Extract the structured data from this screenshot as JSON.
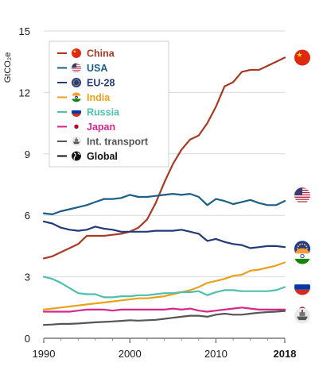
{
  "chart_data": {
    "type": "line",
    "ylabel": "GtCO₂e",
    "xlabel": "",
    "xlim": [
      1990,
      2018
    ],
    "ylim": [
      0,
      15
    ],
    "x_ticks": [
      {
        "value": 1990,
        "label": "1990",
        "bold": false
      },
      {
        "value": 2000,
        "label": "2000",
        "bold": false
      },
      {
        "value": 2010,
        "label": "2010",
        "bold": false
      },
      {
        "value": 2018,
        "label": "2018",
        "bold": true
      }
    ],
    "y_ticks": [
      {
        "value": 0,
        "label": "0"
      },
      {
        "value": 3,
        "label": "3"
      },
      {
        "value": 6,
        "label": "6"
      },
      {
        "value": 9,
        "label": "9"
      },
      {
        "value": 12,
        "label": "12"
      },
      {
        "value": 15,
        "label": "15"
      }
    ],
    "grid": "horizontal",
    "legend_position": "top-left",
    "x": [
      1990,
      1991,
      1992,
      1993,
      1994,
      1995,
      1996,
      1997,
      1998,
      1999,
      2000,
      2001,
      2002,
      2003,
      2004,
      2005,
      2006,
      2007,
      2008,
      2009,
      2010,
      2011,
      2012,
      2013,
      2014,
      2015,
      2016,
      2017,
      2018
    ],
    "series": [
      {
        "name": "China",
        "color": "#a83a22",
        "icon": "china-flag-icon",
        "values": [
          3.9,
          4.0,
          4.2,
          4.4,
          4.6,
          5.0,
          5.0,
          5.0,
          5.05,
          5.1,
          5.2,
          5.4,
          5.8,
          6.6,
          7.6,
          8.5,
          9.2,
          9.7,
          9.9,
          10.5,
          11.3,
          12.3,
          12.5,
          13.0,
          13.1,
          13.1,
          13.3,
          13.5,
          13.7
        ]
      },
      {
        "name": "USA",
        "color": "#1b5f86",
        "icon": "usa-flag-icon",
        "values": [
          6.1,
          6.05,
          6.2,
          6.3,
          6.4,
          6.5,
          6.65,
          6.8,
          6.8,
          6.85,
          7.0,
          6.9,
          6.9,
          6.95,
          7.0,
          7.05,
          7.0,
          7.05,
          6.9,
          6.5,
          6.8,
          6.7,
          6.55,
          6.65,
          6.75,
          6.6,
          6.5,
          6.5,
          6.7
        ]
      },
      {
        "name": "EU-28",
        "color": "#243a78",
        "icon": "eu-flag-icon",
        "values": [
          5.7,
          5.6,
          5.4,
          5.3,
          5.25,
          5.3,
          5.45,
          5.35,
          5.3,
          5.2,
          5.2,
          5.2,
          5.2,
          5.25,
          5.25,
          5.25,
          5.3,
          5.2,
          5.1,
          4.75,
          4.85,
          4.7,
          4.6,
          4.55,
          4.4,
          4.45,
          4.5,
          4.5,
          4.45
        ]
      },
      {
        "name": "India",
        "color": "#e8a21c",
        "icon": "india-flag-icon",
        "values": [
          1.4,
          1.45,
          1.5,
          1.55,
          1.6,
          1.65,
          1.7,
          1.75,
          1.8,
          1.85,
          1.9,
          1.95,
          1.95,
          2.0,
          2.05,
          2.15,
          2.25,
          2.35,
          2.5,
          2.7,
          2.8,
          2.9,
          3.05,
          3.1,
          3.3,
          3.35,
          3.45,
          3.55,
          3.7
        ]
      },
      {
        "name": "Russia",
        "color": "#4fbfad",
        "icon": "russia-flag-icon",
        "values": [
          3.0,
          2.9,
          2.7,
          2.45,
          2.2,
          2.15,
          2.15,
          2.0,
          2.0,
          2.05,
          2.05,
          2.1,
          2.1,
          2.15,
          2.2,
          2.2,
          2.25,
          2.25,
          2.3,
          2.1,
          2.25,
          2.35,
          2.35,
          2.3,
          2.3,
          2.3,
          2.3,
          2.35,
          2.5
        ]
      },
      {
        "name": "Japan",
        "color": "#d6278c",
        "icon": "japan-flag-icon",
        "values": [
          1.3,
          1.3,
          1.3,
          1.3,
          1.35,
          1.4,
          1.4,
          1.4,
          1.35,
          1.4,
          1.4,
          1.4,
          1.4,
          1.4,
          1.4,
          1.45,
          1.4,
          1.45,
          1.35,
          1.3,
          1.35,
          1.4,
          1.45,
          1.5,
          1.45,
          1.4,
          1.4,
          1.4,
          1.4
        ]
      },
      {
        "name": "Int. transport",
        "color": "#555555",
        "icon": "ship-icon",
        "values": [
          0.65,
          0.67,
          0.7,
          0.7,
          0.72,
          0.75,
          0.78,
          0.8,
          0.82,
          0.85,
          0.88,
          0.86,
          0.88,
          0.9,
          0.95,
          1.0,
          1.05,
          1.1,
          1.1,
          1.05,
          1.15,
          1.2,
          1.15,
          1.15,
          1.2,
          1.25,
          1.28,
          1.3,
          1.33
        ]
      }
    ],
    "legend": [
      {
        "name": "China",
        "color": "#a83a22",
        "icon": "china-flag-icon"
      },
      {
        "name": "USA",
        "color": "#1b5f86",
        "icon": "usa-flag-icon"
      },
      {
        "name": "EU-28",
        "color": "#243a78",
        "icon": "eu-flag-icon"
      },
      {
        "name": "India",
        "color": "#e8a21c",
        "icon": "india-flag-icon"
      },
      {
        "name": "Russia",
        "color": "#4fbfad",
        "icon": "russia-flag-icon"
      },
      {
        "name": "Japan",
        "color": "#d6278c",
        "icon": "japan-dot-icon"
      },
      {
        "name": "Int. transport",
        "color": "#555555",
        "icon": "ship-icon"
      },
      {
        "name": "Global",
        "color": "#111111",
        "icon": "globe-icon"
      }
    ]
  }
}
